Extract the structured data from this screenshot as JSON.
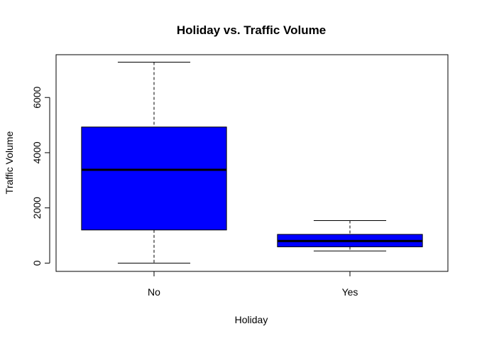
{
  "chart_data": {
    "type": "boxplot",
    "title": "Holiday vs. Traffic Volume",
    "xlabel": "Holiday",
    "ylabel": "Traffic Volume",
    "categories": [
      "No",
      "Yes"
    ],
    "ylim": [
      -300,
      7550
    ],
    "yticks": [
      0,
      2000,
      4000,
      6000
    ],
    "ytick_labels": [
      "0",
      "2000",
      "4000",
      "6000"
    ],
    "box_color": "#0000ff",
    "boxes": [
      {
        "category": "No",
        "whisker_low": 0,
        "q1": 1200,
        "median": 3380,
        "q3": 4930,
        "whisker_high": 7280
      },
      {
        "category": "Yes",
        "whisker_low": 440,
        "q1": 590,
        "median": 800,
        "q3": 1040,
        "whisker_high": 1540
      }
    ]
  }
}
